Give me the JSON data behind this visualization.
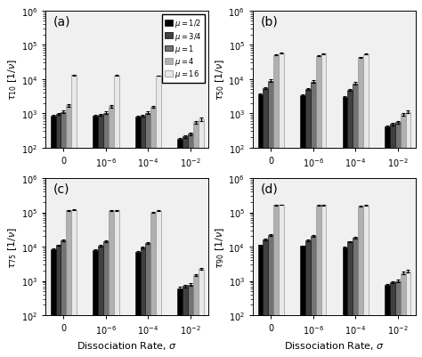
{
  "subplots": [
    {
      "label": "(a)",
      "ylabel": "$\\tau_{10}$ [1/$\\nu$]",
      "groups": [
        [
          850,
          950,
          1100,
          1700,
          13000
        ],
        [
          850,
          920,
          1050,
          1600,
          12800
        ],
        [
          800,
          870,
          1050,
          1550,
          12500
        ],
        [
          175,
          210,
          250,
          550,
          680
        ]
      ],
      "errors": [
        [
          60,
          70,
          90,
          130,
          300
        ],
        [
          55,
          65,
          80,
          120,
          280
        ],
        [
          50,
          60,
          75,
          110,
          260
        ],
        [
          15,
          20,
          25,
          50,
          70
        ]
      ]
    },
    {
      "label": "(b)",
      "ylabel": "$\\tau_{50}$ [1/$\\nu$]",
      "groups": [
        [
          3500,
          5500,
          9000,
          50000,
          57000
        ],
        [
          3300,
          5200,
          8500,
          47000,
          55000
        ],
        [
          3000,
          4800,
          7500,
          43000,
          53000
        ],
        [
          420,
          490,
          550,
          950,
          1100
        ]
      ],
      "errors": [
        [
          200,
          400,
          700,
          1500,
          1800
        ],
        [
          180,
          370,
          650,
          1400,
          1700
        ],
        [
          160,
          340,
          600,
          1300,
          1600
        ],
        [
          30,
          40,
          50,
          80,
          100
        ]
      ]
    },
    {
      "label": "(c)",
      "ylabel": "$\\tau_{75}$ [1/$\\nu$]",
      "groups": [
        [
          8500,
          11000,
          15000,
          115000,
          118000
        ],
        [
          8000,
          10500,
          14000,
          112000,
          116000
        ],
        [
          7000,
          9500,
          13000,
          100000,
          113000
        ],
        [
          620,
          710,
          780,
          1500,
          2300
        ]
      ],
      "errors": [
        [
          400,
          600,
          900,
          2500,
          3000
        ],
        [
          370,
          560,
          830,
          2300,
          2800
        ],
        [
          330,
          510,
          760,
          2100,
          2600
        ],
        [
          45,
          55,
          65,
          110,
          160
        ]
      ]
    },
    {
      "label": "(d)",
      "ylabel": "$\\tau_{90}$ [1/$\\nu$]",
      "groups": [
        [
          11000,
          16000,
          22000,
          165000,
          168000
        ],
        [
          10500,
          15500,
          21000,
          160000,
          165000
        ],
        [
          9500,
          14000,
          18000,
          150000,
          162000
        ],
        [
          780,
          920,
          1000,
          1700,
          1900
        ]
      ],
      "errors": [
        [
          500,
          800,
          1200,
          3500,
          4000
        ],
        [
          470,
          750,
          1100,
          3300,
          3800
        ],
        [
          420,
          680,
          1000,
          3100,
          3600
        ],
        [
          55,
          65,
          75,
          130,
          170
        ]
      ]
    }
  ],
  "mu_labels": [
    "$\\mu = 1/2$",
    "$\\mu = 3/4$",
    "$\\mu = 1$",
    "$\\mu = 4$",
    "$\\mu = 16$"
  ],
  "bar_colors": [
    "#000000",
    "#404040",
    "#737373",
    "#b0b0b0",
    "#e8e8e8"
  ],
  "bar_edgecolors": [
    "#000000",
    "#000000",
    "#000000",
    "#888888",
    "#888888"
  ],
  "x_ticklabels": [
    "0",
    "$10^{-6}$",
    "$10^{-4}$",
    "$10^{-2}$"
  ],
  "xlabel": "Dissociation Rate, $\\sigma$",
  "ylim": [
    100,
    1000000
  ],
  "yticks": [
    100,
    1000,
    10000,
    100000,
    1000000
  ],
  "bar_width": 0.13,
  "group_centers": [
    0.0,
    1.05,
    2.1,
    3.15
  ],
  "bg_color": "#f0f0f0"
}
